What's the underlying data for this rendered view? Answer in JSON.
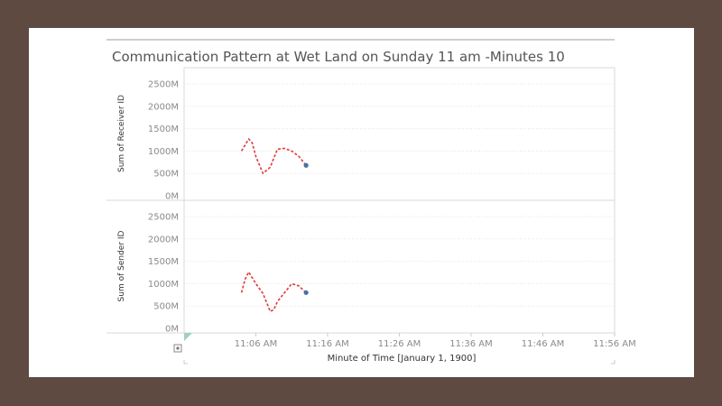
{
  "title": "Communication Pattern at Wet Land on Sunday 11 am -Minutes  10",
  "chart_data": [
    {
      "type": "line",
      "ylabel": "Sum of Receiver ID",
      "ylim": [
        0,
        2700
      ],
      "yticks": [
        0,
        500,
        1000,
        1500,
        2000,
        2500
      ],
      "ytick_labels": [
        "0M",
        "500M",
        "1000M",
        "1500M",
        "2000M",
        "2500M"
      ],
      "grid": true,
      "series": [
        {
          "color": "#e03a3a",
          "x": [
            11.8,
            11.9,
            11.95,
            12.0,
            12.1,
            12.2,
            12.3,
            12.4,
            12.5,
            12.6,
            12.7
          ],
          "values": [
            1000,
            1270,
            1180,
            880,
            500,
            640,
            1040,
            1060,
            1000,
            880,
            680
          ]
        }
      ],
      "end_marker": {
        "x": 12.7,
        "y": 680,
        "color": "#4a6fa5"
      }
    },
    {
      "type": "line",
      "ylabel": "Sum of Sender ID",
      "ylim": [
        0,
        2700
      ],
      "yticks": [
        0,
        500,
        1000,
        1500,
        2000,
        2500
      ],
      "ytick_labels": [
        "0M",
        "500M",
        "1000M",
        "1500M",
        "2000M",
        "2500M"
      ],
      "grid": true,
      "series": [
        {
          "color": "#e03a3a",
          "x": [
            11.8,
            11.85,
            11.9,
            12.0,
            12.1,
            12.2,
            12.25,
            12.3,
            12.5,
            12.6,
            12.7
          ],
          "values": [
            800,
            1100,
            1260,
            1000,
            780,
            380,
            420,
            600,
            1000,
            950,
            800
          ]
        }
      ],
      "end_marker": {
        "x": 12.7,
        "y": 800,
        "color": "#4a6fa5"
      }
    }
  ],
  "x_axis": {
    "label": "Minute of Time [January 1, 1900]",
    "range": [
      11.0,
      17.0
    ],
    "ticks": [
      12,
      22,
      32,
      42,
      52,
      62
    ],
    "tick_values": [
      12.0,
      13.0,
      14.0,
      15.0,
      16.0,
      17.0
    ],
    "tick_labels": [
      "11:06 AM",
      "11:16 AM",
      "11:26 AM",
      "11:36 AM",
      "11:46 AM",
      "11:56 AM"
    ]
  },
  "colors": {
    "line": "#e03a3a",
    "marker": "#4a6fa5",
    "corner": "#9fd1c3"
  }
}
